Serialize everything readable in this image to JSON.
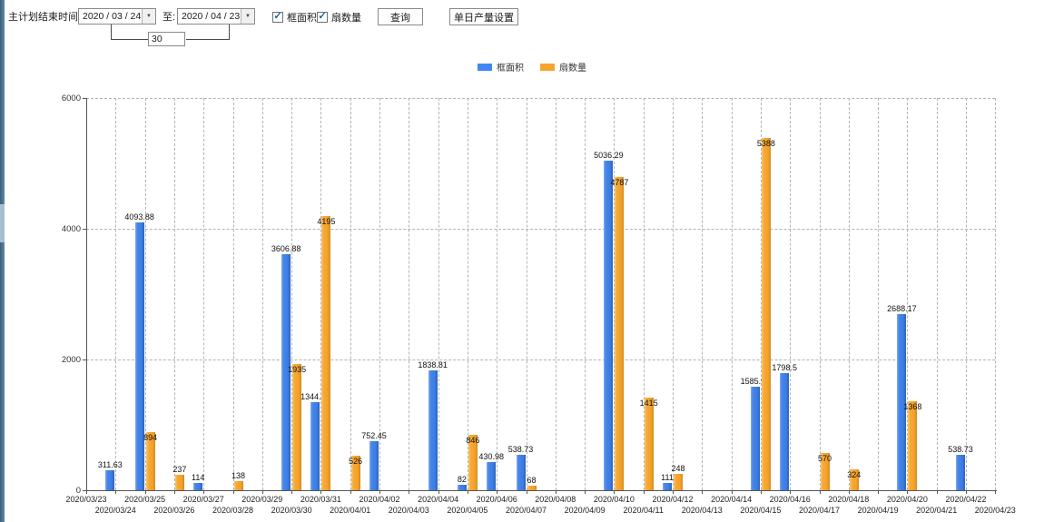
{
  "icons": {
    "dropdown_arrow": "▼",
    "check": "✓"
  },
  "toolbar": {
    "plan_end_label": "主计划结束时间:",
    "date_from": "2020 / 03 / 24",
    "to_label": "至:",
    "date_to": "2020 / 04 / 23",
    "interval_days": "30",
    "checkboxes": [
      {
        "label": "框面积",
        "checked": true
      },
      {
        "label": "扇数量",
        "checked": true
      }
    ],
    "query_button": "查询",
    "daily_output_button": "单日产量设置"
  },
  "legend": [
    {
      "label": "框面积",
      "color": "#4285f4"
    },
    {
      "label": "扇数量",
      "color": "#f5a52f"
    }
  ],
  "chart_data": {
    "type": "bar",
    "title": "",
    "xlabel": "",
    "ylabel": "",
    "ylim": [
      0,
      6000
    ],
    "yticks": [
      0,
      2000,
      4000,
      6000
    ],
    "grid": "dashed",
    "legend_position": "top",
    "categories": [
      "2020/03/23",
      "2020/03/24",
      "2020/03/25",
      "2020/03/26",
      "2020/03/27",
      "2020/03/28",
      "2020/03/29",
      "2020/03/30",
      "2020/03/31",
      "2020/04/01",
      "2020/04/02",
      "2020/04/03",
      "2020/04/04",
      "2020/04/05",
      "2020/04/06",
      "2020/04/07",
      "2020/04/08",
      "2020/04/09",
      "2020/04/10",
      "2020/04/11",
      "2020/04/12",
      "2020/04/13",
      "2020/04/14",
      "2020/04/15",
      "2020/04/16",
      "2020/04/17",
      "2020/04/18",
      "2020/04/19",
      "2020/04/20",
      "2020/04/21",
      "2020/04/22",
      "2020/04/23"
    ],
    "series": [
      {
        "name": "框面积",
        "color": "#4285f4",
        "values": [
          null,
          311.63,
          4093.88,
          null,
          114,
          null,
          null,
          3606.88,
          1344.95,
          null,
          752.45,
          null,
          1838.81,
          82,
          430.98,
          538.73,
          null,
          null,
          5036.29,
          null,
          111,
          null,
          null,
          1585.96,
          1798.5,
          null,
          null,
          null,
          2688.17,
          null,
          538.73,
          null
        ]
      },
      {
        "name": "扇数量",
        "color": "#f5a52f",
        "values": [
          null,
          null,
          894,
          237,
          null,
          138,
          null,
          1935,
          4195,
          526,
          null,
          null,
          null,
          846,
          null,
          68,
          null,
          null,
          4787,
          1415,
          248,
          null,
          null,
          5388,
          null,
          570,
          324,
          null,
          1368,
          null,
          null,
          null
        ]
      }
    ]
  }
}
